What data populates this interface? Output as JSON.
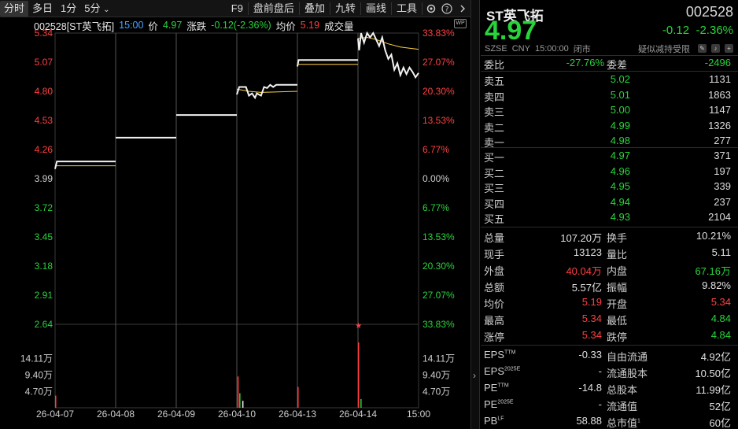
{
  "toolbar": {
    "left": [
      "分时",
      "多日",
      "1分",
      "5分"
    ],
    "five_min_arrow": "⌄",
    "right": [
      "F9",
      "盘前盘后",
      "叠加",
      "九转",
      "画线",
      "工具"
    ],
    "settings_icon": "gear-icon",
    "help_icon": "help-icon",
    "expand_icon": "chevron-right-icon"
  },
  "chart_header": {
    "code_name": "002528[ST英飞拓]",
    "time": "15:00",
    "price_label": "价",
    "price": "4.97",
    "change_label": "涨跌",
    "change": "-0.12(-2.36%)",
    "avg_label": "均价",
    "avg": "5.19",
    "volume_label": "成交量",
    "badge": "WP"
  },
  "chart_data": {
    "type": "line",
    "title": "",
    "prev_close": 3.99,
    "y_ticks": [
      5.34,
      5.07,
      4.8,
      4.53,
      4.26,
      3.99,
      3.72,
      3.45,
      3.18,
      2.91,
      2.64
    ],
    "y_tick_labels": [
      "5.34",
      "5.07",
      "4.80",
      "4.53",
      "4.26",
      "3.99",
      "3.72",
      "3.45",
      "3.18",
      "2.91",
      "2.64"
    ],
    "pct_ticks": [
      "33.83%",
      "27.07%",
      "20.30%",
      "13.53%",
      "6.77%",
      "0.00%",
      "6.77%",
      "13.53%",
      "20.30%",
      "27.07%",
      "33.83%"
    ],
    "ylim": [
      2.64,
      5.34
    ],
    "x_labels": [
      "26-04-07",
      "26-04-08",
      "26-04-09",
      "26-04-10",
      "26-04-13",
      "26-04-14",
      "15:00"
    ],
    "volume_ticks": [
      "14.11万",
      "9.40万",
      "4.70万"
    ],
    "volume_max_wan": 18.8,
    "series": [
      {
        "day": "26-04-07",
        "price": [
          [
            0,
            4.08
          ],
          [
            0.03,
            4.15
          ],
          [
            1,
            4.15
          ]
        ],
        "avg": [
          [
            0,
            4.11
          ],
          [
            1,
            4.11
          ]
        ]
      },
      {
        "day": "26-04-08",
        "price": [
          [
            0,
            4.37
          ],
          [
            1,
            4.37
          ]
        ],
        "avg": []
      },
      {
        "day": "26-04-09",
        "price": [
          [
            0,
            4.58
          ],
          [
            1,
            4.58
          ]
        ],
        "avg": []
      },
      {
        "day": "26-04-10",
        "price": [
          [
            0,
            4.77
          ],
          [
            0.04,
            4.84
          ],
          [
            0.15,
            4.84
          ],
          [
            0.2,
            4.76
          ],
          [
            0.25,
            4.78
          ],
          [
            0.3,
            4.74
          ],
          [
            0.33,
            4.78
          ],
          [
            0.4,
            4.76
          ],
          [
            0.45,
            4.84
          ],
          [
            0.5,
            4.83
          ],
          [
            0.55,
            4.86
          ],
          [
            0.6,
            4.84
          ],
          [
            0.65,
            4.86
          ],
          [
            1,
            4.86
          ]
        ],
        "avg": [
          [
            0,
            4.82
          ],
          [
            0.2,
            4.8
          ],
          [
            0.4,
            4.79
          ],
          [
            1,
            4.8
          ]
        ]
      },
      {
        "day": "26-04-13",
        "price": [
          [
            0,
            5.03
          ],
          [
            0.02,
            5.09
          ],
          [
            1,
            5.09
          ]
        ],
        "avg": [
          [
            0,
            5.05
          ],
          [
            1,
            5.05
          ]
        ]
      },
      {
        "day": "26-04-14",
        "price": [
          [
            0,
            5.29
          ],
          [
            0.02,
            5.18
          ],
          [
            0.05,
            5.34
          ],
          [
            0.1,
            5.25
          ],
          [
            0.15,
            5.34
          ],
          [
            0.2,
            5.3
          ],
          [
            0.25,
            5.34
          ],
          [
            0.3,
            5.28
          ],
          [
            0.35,
            5.22
          ],
          [
            0.4,
            5.3
          ],
          [
            0.45,
            5.18
          ],
          [
            0.5,
            5.1
          ],
          [
            0.55,
            5.14
          ],
          [
            0.6,
            5.0
          ],
          [
            0.65,
            5.06
          ],
          [
            0.7,
            4.95
          ],
          [
            0.75,
            5.02
          ],
          [
            0.8,
            4.96
          ],
          [
            0.85,
            5.02
          ],
          [
            0.9,
            4.98
          ],
          [
            0.95,
            4.93
          ],
          [
            1,
            4.97
          ]
        ],
        "avg": [
          [
            0,
            5.29
          ],
          [
            0.15,
            5.3
          ],
          [
            0.3,
            5.28
          ],
          [
            0.5,
            5.24
          ],
          [
            0.7,
            5.21
          ],
          [
            0.85,
            5.2
          ],
          [
            1,
            5.19
          ]
        ]
      }
    ],
    "volume_spikes": [
      {
        "day": 0,
        "at": 0.01,
        "wan": 3.5,
        "color": "red"
      },
      {
        "day": 3,
        "at": 0.02,
        "wan": 9.0,
        "color": "red"
      },
      {
        "day": 3,
        "at": 0.05,
        "wan": 4.2,
        "color": "green"
      },
      {
        "day": 3,
        "at": 0.1,
        "wan": 2.0,
        "color": "white"
      },
      {
        "day": 4,
        "at": 0.01,
        "wan": 6.0,
        "color": "red"
      },
      {
        "day": 5,
        "at": 0.01,
        "wan": 18.8,
        "color": "red"
      },
      {
        "day": 5,
        "at": 0.05,
        "wan": 2.5,
        "color": "green"
      }
    ],
    "marker": "★"
  },
  "quote": {
    "name": "ST英飞拓",
    "code": "002528",
    "price": "4.97",
    "change": "-0.12",
    "change_pct": "-2.36%",
    "market": "SZSE",
    "currency": "CNY",
    "time": "15:00:00",
    "status": "闭市",
    "note": "疑似减持受限",
    "icons": [
      "edit-icon",
      "bell-icon",
      "add-icon"
    ]
  },
  "order_ratio": {
    "label1": "委比",
    "value1": "-27.76%",
    "label2": "委差",
    "value2": "-2496"
  },
  "asks": [
    {
      "label": "卖五",
      "price": "5.02",
      "vol": "1131",
      "color": "green"
    },
    {
      "label": "卖四",
      "price": "5.01",
      "vol": "1863",
      "color": "green"
    },
    {
      "label": "卖三",
      "price": "5.00",
      "vol": "1147",
      "color": "green"
    },
    {
      "label": "卖二",
      "price": "4.99",
      "vol": "1326",
      "color": "green"
    },
    {
      "label": "卖一",
      "price": "4.98",
      "vol": "277",
      "color": "green"
    }
  ],
  "bids": [
    {
      "label": "买一",
      "price": "4.97",
      "vol": "371",
      "color": "green"
    },
    {
      "label": "买二",
      "price": "4.96",
      "vol": "197",
      "color": "green"
    },
    {
      "label": "买三",
      "price": "4.95",
      "vol": "339",
      "color": "green"
    },
    {
      "label": "买四",
      "price": "4.94",
      "vol": "237",
      "color": "green"
    },
    {
      "label": "买五",
      "price": "4.93",
      "vol": "2104",
      "color": "green"
    }
  ],
  "stats": [
    {
      "l1": "总量",
      "v1": "107.20万",
      "c1": "white",
      "l2": "换手",
      "v2": "10.21%",
      "c2": "white"
    },
    {
      "l1": "现手",
      "v1": "13123",
      "c1": "white",
      "l2": "量比",
      "v2": "5.11",
      "c2": "white"
    },
    {
      "l1": "外盘",
      "v1": "40.04万",
      "c1": "red",
      "l2": "内盘",
      "v2": "67.16万",
      "c2": "green"
    },
    {
      "l1": "总额",
      "v1": "5.57亿",
      "c1": "white",
      "l2": "振幅",
      "v2": "9.82%",
      "c2": "white"
    },
    {
      "l1": "均价",
      "v1": "5.19",
      "c1": "red",
      "l2": "开盘",
      "v2": "5.34",
      "c2": "red"
    },
    {
      "l1": "最高",
      "v1": "5.34",
      "c1": "red",
      "l2": "最低",
      "v2": "4.84",
      "c2": "green"
    },
    {
      "l1": "涨停",
      "v1": "5.34",
      "c1": "red",
      "l2": "跌停",
      "v2": "4.84",
      "c2": "green"
    }
  ],
  "fundamentals": [
    {
      "l1": "EPS",
      "s1": "TTM",
      "v1": "-0.33",
      "l2": "自由流通",
      "v2": "4.92亿"
    },
    {
      "l1": "EPS",
      "s1": "2025E",
      "v1": "-",
      "l2": "流通股本",
      "v2": "10.50亿"
    },
    {
      "l1": "PE",
      "s1": "TTM",
      "v1": "-14.8",
      "l2": "总股本",
      "v2": "11.99亿"
    },
    {
      "l1": "PE",
      "s1": "2025E",
      "v1": "-",
      "l2": "流通值",
      "v2": "52亿"
    },
    {
      "l1": "PB",
      "s1": "LF",
      "v1": "58.88",
      "l2": "总市值",
      "s2": "1",
      "v2": "60亿"
    }
  ]
}
